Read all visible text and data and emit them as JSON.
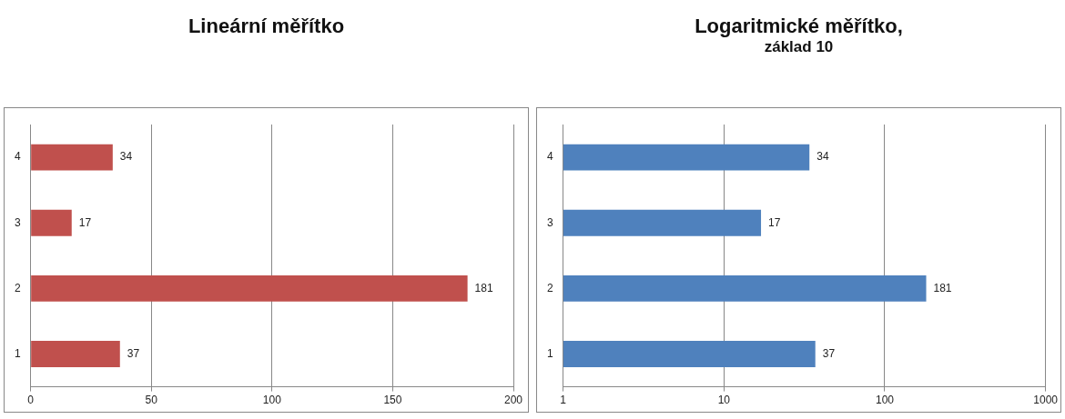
{
  "chart_data": [
    {
      "type": "bar",
      "title": "Lineární měřítko",
      "orientation": "horizontal",
      "categories": [
        "4",
        "3",
        "2",
        "1"
      ],
      "values": [
        34,
        17,
        181,
        37
      ],
      "color": "#c0504d",
      "xlim": [
        0,
        200
      ],
      "xticks": [
        0,
        50,
        100,
        150,
        200
      ],
      "grid": "x",
      "data_labels": true
    },
    {
      "type": "bar",
      "title": "Logaritmické měřítko,",
      "subtitle": "základ 10",
      "orientation": "horizontal",
      "categories": [
        "4",
        "3",
        "2",
        "1"
      ],
      "values": [
        34,
        17,
        181,
        37
      ],
      "color": "#4f81bd",
      "xlim": [
        1,
        1000
      ],
      "xticks": [
        1,
        10,
        100,
        1000
      ],
      "log": "x",
      "grid": "x",
      "data_labels": true
    }
  ]
}
